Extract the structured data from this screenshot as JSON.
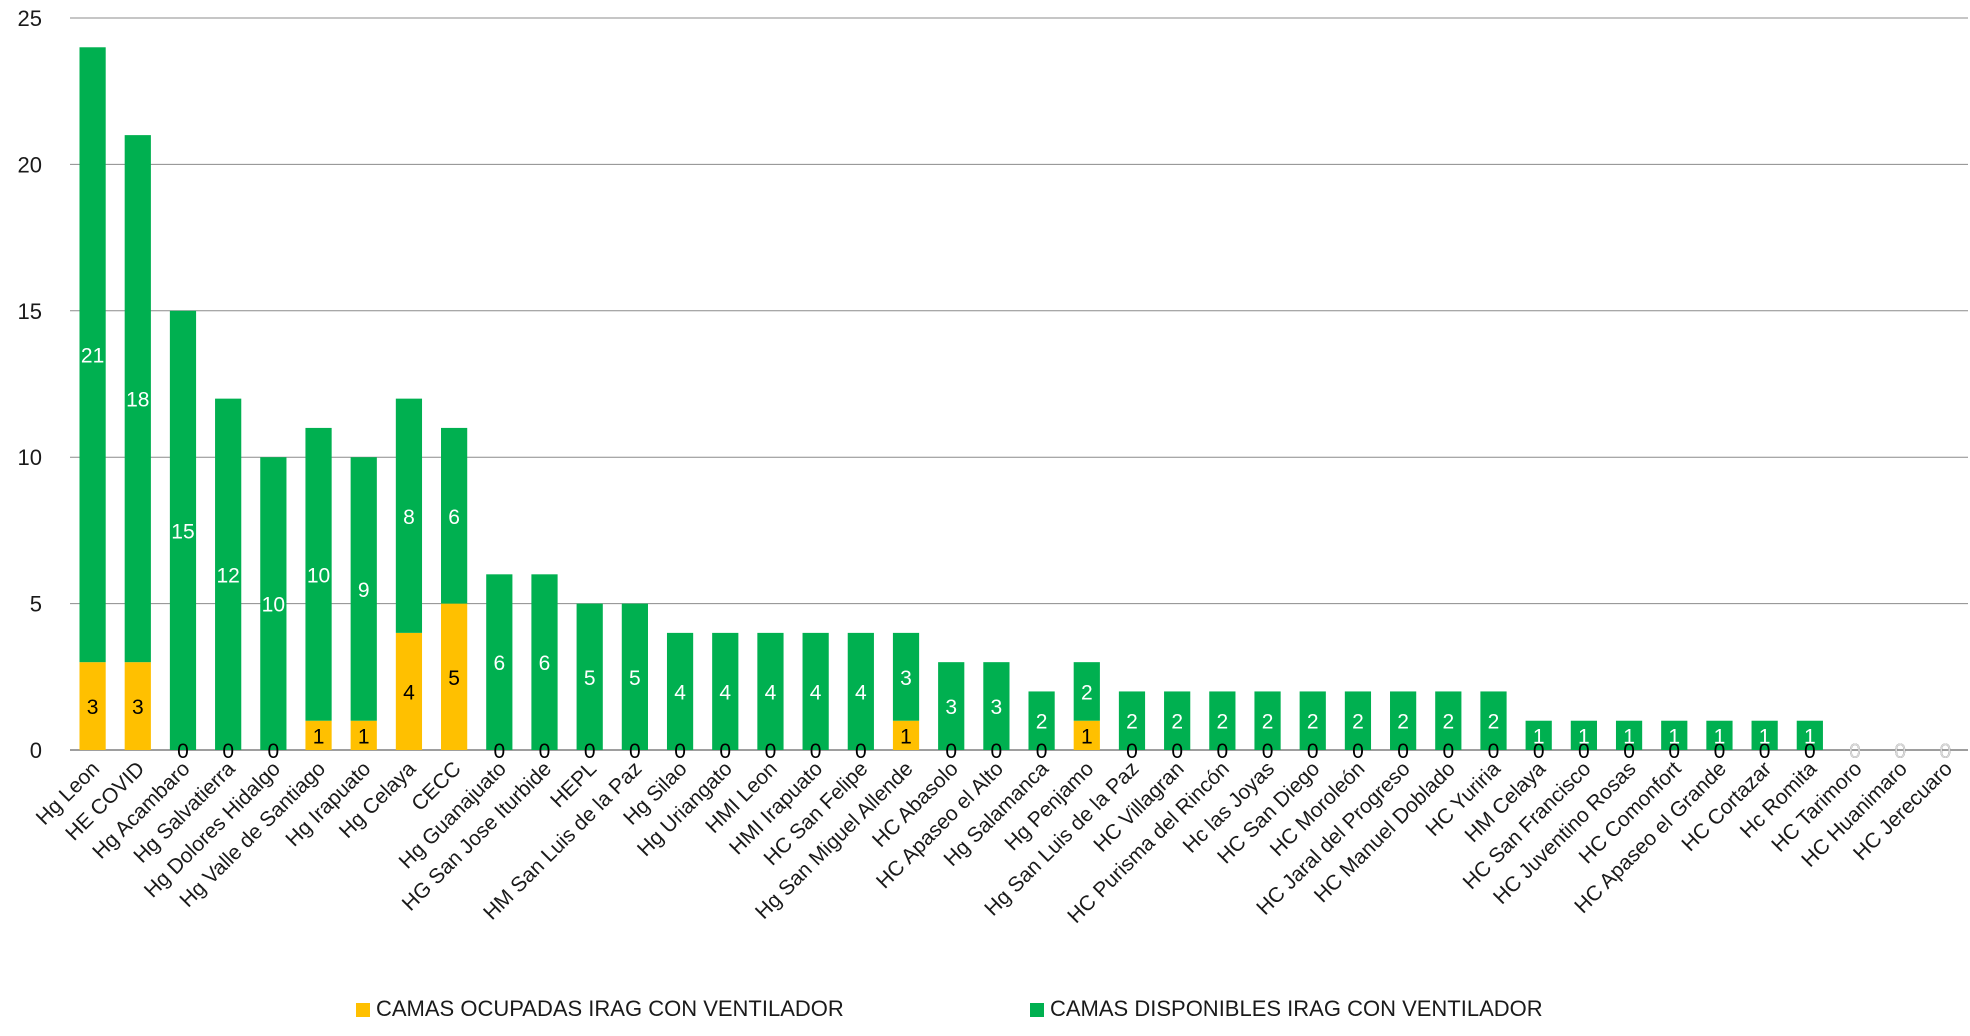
{
  "chart_data": {
    "type": "bar",
    "stacked": true,
    "title": "",
    "xlabel": "",
    "ylabel": "",
    "ylim": [
      0,
      25
    ],
    "yticks": [
      0,
      5,
      10,
      15,
      20,
      25
    ],
    "grid": true,
    "legend_position": "bottom",
    "categories": [
      "Hg Leon",
      "HE COVID",
      "Hg Acambaro",
      "Hg Salvatierra",
      "Hg Dolores Hidalgo",
      "Hg Valle de Santiago",
      "Hg Irapuato",
      "Hg Celaya",
      "CECC",
      "Hg Guanajuato",
      "HG San Jose Iturbide",
      "HEPL",
      "HM San Luis de la Paz",
      "Hg Silao",
      "Hg Uriangato",
      "HMI Leon",
      "HMI Irapuato",
      "HC San Felipe",
      "Hg San Miguel Allende",
      "HC Abasolo",
      "HC Apaseo el Alto",
      "Hg Salamanca",
      "Hg Penjamo",
      "Hg San Luis de la Paz",
      "HC Villagran",
      "HC Purisma del Rincón",
      "Hc las Joyas",
      "HC San Diego",
      "HC Moroleón",
      "HC Jaral del Progreso",
      "HC Manuel Doblado",
      "HC Yuriria",
      "HM Celaya",
      "HC San Francisco",
      "HC Juventino Rosas",
      "HC Comonfort",
      "HC Apaseo el Grande",
      "HC Cortazar",
      "Hc Romita",
      "HC Tarimoro",
      "HC Huanimaro",
      "HC Jerecuaro"
    ],
    "series": [
      {
        "name": "CAMAS OCUPADAS IRAG CON VENTILADOR",
        "color": "#FFC000",
        "label_color": "#000000",
        "values": [
          3,
          3,
          0,
          0,
          0,
          1,
          1,
          4,
          5,
          0,
          0,
          0,
          0,
          0,
          0,
          0,
          0,
          0,
          1,
          0,
          0,
          0,
          1,
          0,
          0,
          0,
          0,
          0,
          0,
          0,
          0,
          0,
          0,
          0,
          0,
          0,
          0,
          0,
          0,
          0,
          0,
          0
        ]
      },
      {
        "name": "CAMAS DISPONIBLES IRAG  CON VENTILADOR",
        "color": "#00B050",
        "label_color": "#ffffff",
        "values": [
          21,
          18,
          15,
          12,
          10,
          10,
          9,
          8,
          6,
          6,
          6,
          5,
          5,
          4,
          4,
          4,
          4,
          4,
          3,
          3,
          3,
          2,
          2,
          2,
          2,
          2,
          2,
          2,
          2,
          2,
          2,
          2,
          1,
          1,
          1,
          1,
          1,
          1,
          1,
          0,
          0,
          0
        ]
      }
    ]
  }
}
